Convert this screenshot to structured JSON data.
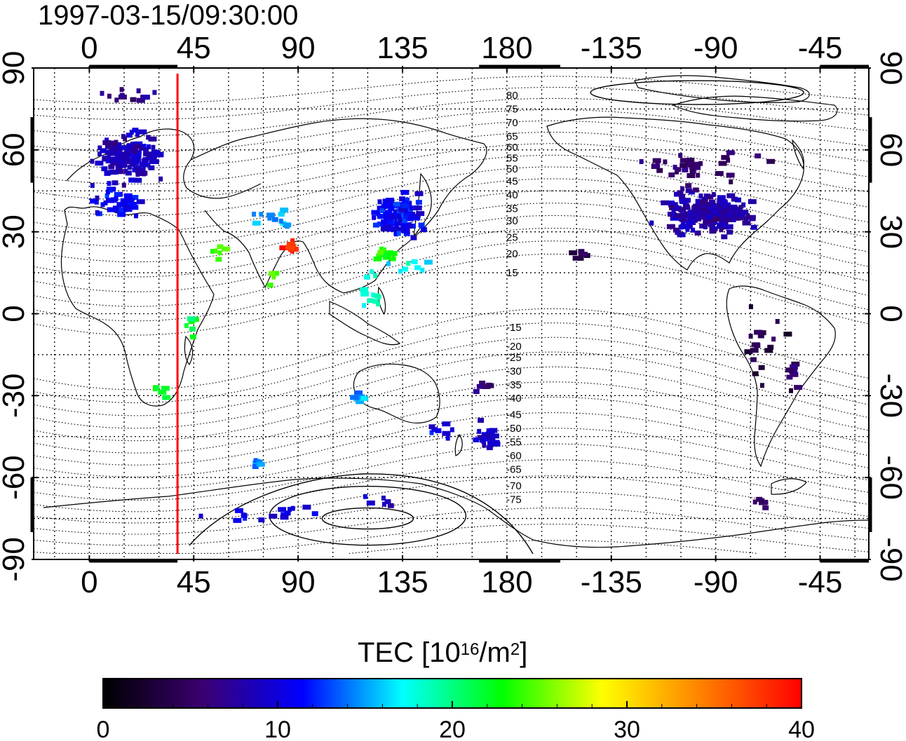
{
  "title": "1997-03-15/09:30:00",
  "map": {
    "lon_top_ticks": [
      "0",
      "45",
      "90",
      "135",
      "180",
      "-135",
      "-90",
      "-45"
    ],
    "lon_bottom_ticks": [
      "0",
      "45",
      "90",
      "135",
      "180",
      "-135",
      "-90",
      "-45"
    ],
    "lat_ticks": [
      "90",
      "60",
      "30",
      "0",
      "-30",
      "-60",
      "-90"
    ],
    "lon_tick_values": [
      0,
      45,
      90,
      135,
      180,
      225,
      270,
      315
    ],
    "lat_tick_values": [
      90,
      60,
      30,
      0,
      -30,
      -60,
      -90
    ],
    "lon_range": [
      -24,
      336
    ],
    "lat_range": [
      -90,
      90
    ],
    "marker_line_lon": 38,
    "marker_line_color": "#ff0000",
    "contour_labels": [
      "80",
      "75",
      "70",
      "65",
      "60",
      "55",
      "50",
      "45",
      "40",
      "35",
      "30",
      "25",
      "20",
      "15",
      "-15",
      "-20",
      "-25",
      "-30",
      "-35",
      "-40",
      "-45",
      "-50",
      "-55",
      "-60",
      "-65",
      "-70",
      "-75"
    ],
    "contour_label_lats": [
      80,
      75,
      70,
      65,
      61,
      57,
      53,
      48.5,
      43.5,
      38.5,
      34,
      28,
      22,
      15,
      -5,
      -12,
      -16,
      -21,
      -26,
      -31,
      -37,
      -42,
      -47,
      -52,
      -57,
      -63,
      -68
    ]
  },
  "colorbar": {
    "title_main": "TEC  [10",
    "title_sup1": "16",
    "title_mid": "/m",
    "title_sup2": "2",
    "title_end": "]",
    "ticks": [
      "0",
      "10",
      "20",
      "30",
      "40"
    ],
    "tick_values": [
      0,
      10,
      20,
      30,
      40
    ],
    "range": [
      0,
      40
    ],
    "stops": [
      "#000000",
      "#3a0070",
      "#0000ff",
      "#00ffff",
      "#00ff00",
      "#ffff00",
      "#ff8000",
      "#ff0000"
    ]
  },
  "tec_clusters": [
    {
      "lon": 15,
      "lat": 58,
      "slon": 9,
      "slat": 6,
      "n": 160,
      "v": 8.5
    },
    {
      "lon": 10,
      "lat": 42,
      "slon": 8,
      "slat": 4,
      "n": 40,
      "v": 10.5
    },
    {
      "lon": 18,
      "lat": 80,
      "slon": 10,
      "slat": 2,
      "n": 12,
      "v": 6.5
    },
    {
      "lon": 132,
      "lat": 37,
      "slon": 8,
      "slat": 5,
      "n": 120,
      "v": 11
    },
    {
      "lon": 124,
      "lat": 23,
      "slon": 5,
      "slat": 1.5,
      "n": 12,
      "v": 23
    },
    {
      "lon": 85,
      "lat": 25,
      "slon": 3,
      "slat": 1.5,
      "n": 8,
      "v": 38
    },
    {
      "lon": 78,
      "lat": 36,
      "slon": 6,
      "slat": 3,
      "n": 12,
      "v": 15
    },
    {
      "lon": 55,
      "lat": 23,
      "slon": 3,
      "slat": 4,
      "n": 6,
      "v": 24
    },
    {
      "lon": 78,
      "lat": 14,
      "slon": 2,
      "slat": 2,
      "n": 4,
      "v": 25
    },
    {
      "lon": 120,
      "lat": 10,
      "slon": 3,
      "slat": 5,
      "n": 12,
      "v": 18
    },
    {
      "lon": 43,
      "lat": -3,
      "slon": 2,
      "slat": 3,
      "n": 6,
      "v": 22
    },
    {
      "lon": 28,
      "lat": -28,
      "slon": 3,
      "slat": 2,
      "n": 6,
      "v": 22
    },
    {
      "lon": 115,
      "lat": -30,
      "slon": 3,
      "slat": 2,
      "n": 8,
      "v": 16
    },
    {
      "lon": 72,
      "lat": -53,
      "slon": 2,
      "slat": 1.5,
      "n": 6,
      "v": 15
    },
    {
      "lon": 170,
      "lat": -45,
      "slon": 3,
      "slat": 4,
      "n": 20,
      "v": 9
    },
    {
      "lon": 150,
      "lat": -42,
      "slon": 5,
      "slat": 2,
      "n": 8,
      "v": 10
    },
    {
      "lon": 70,
      "lat": -72,
      "slon": 18,
      "slat": 2,
      "n": 16,
      "v": 10
    },
    {
      "lon": 125,
      "lat": -68,
      "slon": 10,
      "slat": 2,
      "n": 6,
      "v": 9
    },
    {
      "lon": 265,
      "lat": 38,
      "slon": 14,
      "slat": 5,
      "n": 220,
      "v": 8
    },
    {
      "lon": 260,
      "lat": 55,
      "slon": 22,
      "slat": 5,
      "n": 40,
      "v": 5.5
    },
    {
      "lon": 210,
      "lat": 22,
      "slon": 3,
      "slat": 2,
      "n": 8,
      "v": 4
    },
    {
      "lon": 290,
      "lat": -10,
      "slon": 6,
      "slat": 10,
      "n": 18,
      "v": 3
    },
    {
      "lon": 302,
      "lat": -24,
      "slon": 4,
      "slat": 6,
      "n": 8,
      "v": 5
    },
    {
      "lon": 287,
      "lat": -68,
      "slon": 4,
      "slat": 2,
      "n": 6,
      "v": 5
    },
    {
      "lon": 168,
      "lat": -25,
      "slon": 3,
      "slat": 2,
      "n": 6,
      "v": 6
    },
    {
      "lon": 138,
      "lat": 18,
      "slon": 8,
      "slat": 4,
      "n": 8,
      "v": 17
    }
  ]
}
